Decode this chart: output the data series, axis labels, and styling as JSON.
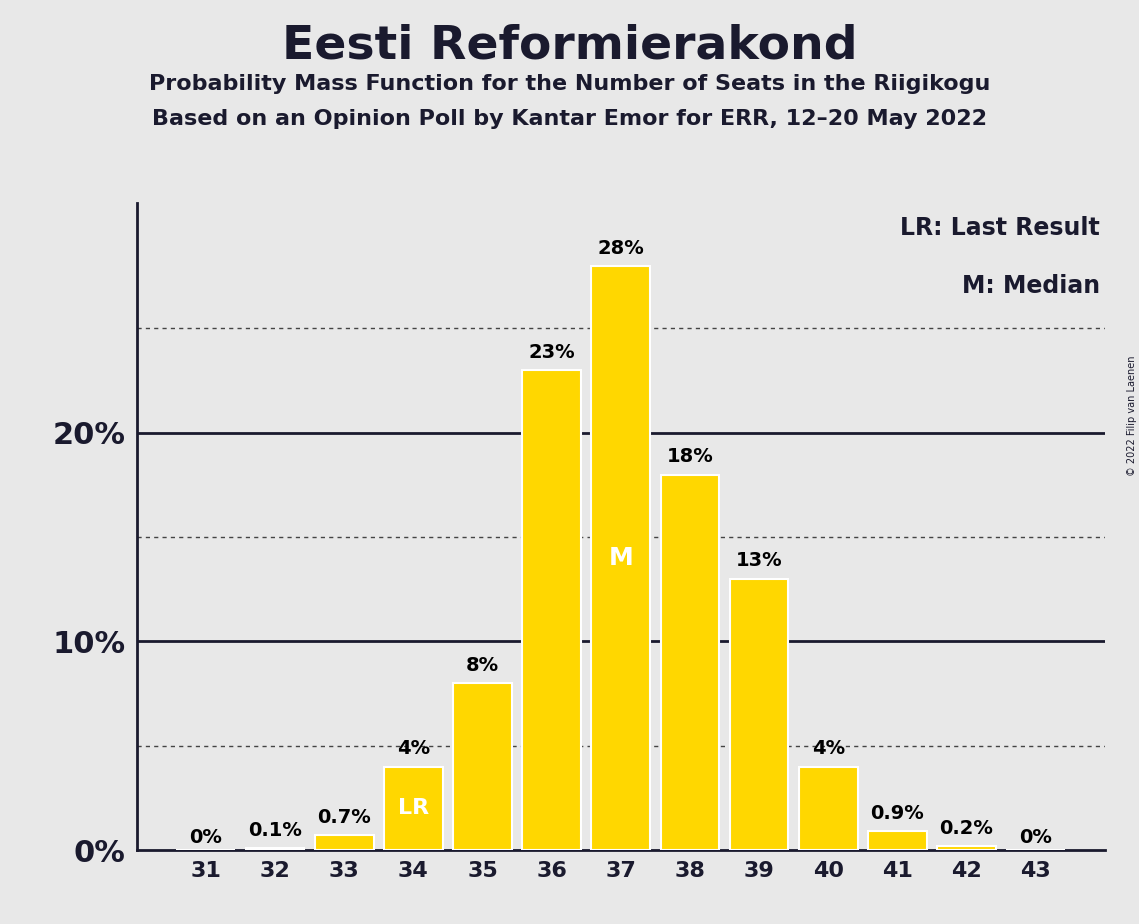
{
  "title": "Eesti Reformierakond",
  "subtitle1": "Probability Mass Function for the Number of Seats in the Riigikogu",
  "subtitle2": "Based on an Opinion Poll by Kantar Emor for ERR, 12–20 May 2022",
  "copyright": "© 2022 Filip van Laenen",
  "seats": [
    31,
    32,
    33,
    34,
    35,
    36,
    37,
    38,
    39,
    40,
    41,
    42,
    43
  ],
  "probabilities": [
    0.0,
    0.1,
    0.7,
    4.0,
    8.0,
    23.0,
    28.0,
    18.0,
    13.0,
    4.0,
    0.9,
    0.2,
    0.0
  ],
  "bar_color": "#FFD700",
  "bar_edge_color": "#FFFFFF",
  "background_color": "#E8E8E8",
  "last_result_seat": 34,
  "median_seat": 37,
  "lr_label": "LR",
  "m_label": "M",
  "legend_lr": "LR: Last Result",
  "legend_m": "M: Median",
  "dotted_yticks": [
    5,
    15,
    25
  ],
  "solid_yticks": [
    10,
    20
  ],
  "title_fontsize": 34,
  "subtitle_fontsize": 16,
  "label_fontsize": 14,
  "axis_fontsize": 16,
  "yaxis_label_fontsize": 22,
  "ylim_max": 31,
  "bar_width": 0.85,
  "spine_color": "#1a1a2e"
}
